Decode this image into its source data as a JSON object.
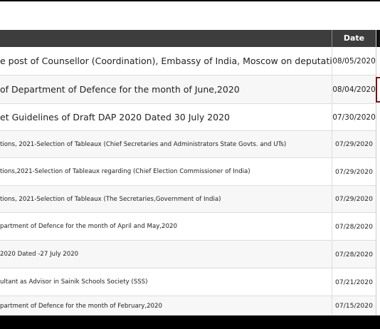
{
  "table": {
    "header": {
      "date": "Date"
    },
    "rows": [
      {
        "title": "e post of Counsellor (Coordination), Embassy of India, Moscow on deputation basis",
        "date": "08/05/2020"
      },
      {
        "title": " of Department of Defence for the month of June,2020",
        "date": "08/04/2020"
      },
      {
        "title": "et Guidelines of Draft DAP 2020 Dated 30 July 2020",
        "date": "07/30/2020"
      },
      {
        "title": "tions, 2021-Selection of Tableaux (Chief Secretaries and Administrators State Govts. and UTs)",
        "date": "07/29/2020"
      },
      {
        "title": "tions,2021-Selection of Tableaux regarding (Chief Election Commissioner of India)",
        "date": "07/29/2020"
      },
      {
        "title": "tions, 2021-Selection of Tableaux (The Secretaries,Government of India)",
        "date": "07/29/2020"
      },
      {
        "title": "partment of Defence for the month of April and May,2020",
        "date": "07/28/2020"
      },
      {
        "title": "2020 Dated -27 July 2020",
        "date": "07/28/2020"
      },
      {
        "title": "ultant as Advisor in Sainik Schools Society (SSS)",
        "date": "07/21/2020"
      },
      {
        "title": "partment of Defence for the month of February,2020",
        "date": "07/15/2020"
      }
    ]
  }
}
